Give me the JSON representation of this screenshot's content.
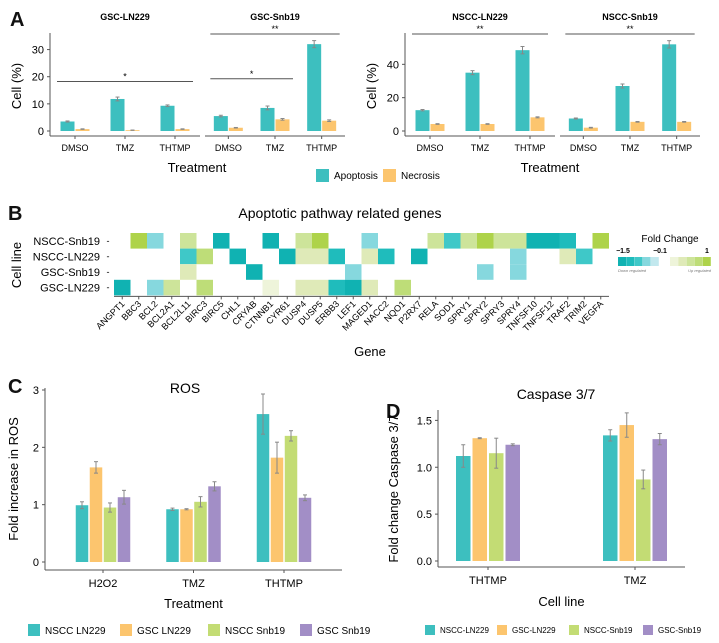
{
  "colors": {
    "apoptosis": "#3dbfbf",
    "necrosis": "#fcc56e",
    "nscc_ln229": "#3dbfbf",
    "gsc_ln229": "#fcc56e",
    "nscc_snb19": "#c3dc74",
    "gsc_snb19": "#a28ec6",
    "axis": "#555555",
    "errorbar": "#888888",
    "sig_line": "#555555"
  },
  "panel_labels": [
    "A",
    "B",
    "C",
    "D"
  ],
  "chart_data": [
    {
      "id": "A",
      "type": "bar",
      "ylabel": "Cell (%)",
      "xlabel": "Treatment",
      "legend": [
        "Apoptosis",
        "Necrosis"
      ],
      "legend_position": "bottom-center",
      "categories": [
        "DMSO",
        "TMZ",
        "THTMP"
      ],
      "facets": [
        {
          "title": "GSC-LN229",
          "ylim": [
            0,
            35
          ],
          "yticks": [
            0,
            10,
            20,
            30
          ],
          "show_yaxis": true,
          "series": [
            {
              "name": "Apoptosis",
              "values": [
                3.5,
                11.8,
                9.3
              ],
              "err": [
                0.2,
                0.7,
                0.3
              ]
            },
            {
              "name": "Necrosis",
              "values": [
                0.7,
                0.3,
                0.7
              ],
              "err": [
                0.1,
                0.05,
                0.1
              ]
            }
          ],
          "significance": [
            {
              "from": "DMSO",
              "to": "THTMP",
              "label": "*",
              "y": 17.5
            }
          ]
        },
        {
          "title": "GSC-Snb19",
          "ylim": [
            0,
            35
          ],
          "yticks": [
            0,
            10,
            20,
            30
          ],
          "show_yaxis": false,
          "series": [
            {
              "name": "Apoptosis",
              "values": [
                5.5,
                8.5,
                32
              ],
              "err": [
                0.3,
                0.7,
                1.3
              ]
            },
            {
              "name": "Necrosis",
              "values": [
                1.2,
                4.3,
                3.8
              ],
              "err": [
                0.1,
                0.3,
                0.3
              ]
            }
          ],
          "significance": [
            {
              "from": "DMSO",
              "to": "TMZ",
              "label": "*",
              "y": 18.5
            },
            {
              "from": "DMSO",
              "to": "THTMP",
              "label": "**",
              "y": 35
            }
          ]
        },
        {
          "title": "NSCC-LN229",
          "ylim": [
            0,
            57
          ],
          "yticks": [
            0,
            20,
            40
          ],
          "show_yaxis": true,
          "series": [
            {
              "name": "Apoptosis",
              "values": [
                12.5,
                35,
                48.5
              ],
              "err": [
                0.4,
                1.2,
                2.2
              ]
            },
            {
              "name": "Necrosis",
              "values": [
                4.2,
                4.2,
                8.2
              ],
              "err": [
                0.2,
                0.2,
                0.3
              ]
            }
          ],
          "significance": [
            {
              "from": "DMSO",
              "to": "THTMP",
              "label": "**",
              "y": 57
            }
          ]
        },
        {
          "title": "NSCC-Snb19",
          "ylim": [
            0,
            57
          ],
          "yticks": [
            0,
            20,
            40
          ],
          "show_yaxis": false,
          "series": [
            {
              "name": "Apoptosis",
              "values": [
                7.5,
                27,
                52
              ],
              "err": [
                0.3,
                1.2,
                2.2
              ]
            },
            {
              "name": "Necrosis",
              "values": [
                2,
                5.5,
                5.5
              ],
              "err": [
                0.2,
                0.2,
                0.2
              ]
            }
          ],
          "significance": [
            {
              "from": "DMSO",
              "to": "THTMP",
              "label": "**",
              "y": 57
            }
          ]
        }
      ]
    },
    {
      "id": "B",
      "type": "heatmap",
      "title": "Apoptotic pathway related genes",
      "xlabel": "Gene",
      "ylabel": "Cell line",
      "rows": [
        "NSCC-Snb19",
        "NSCC-LN229",
        "GSC-Snb19",
        "GSC-LN229"
      ],
      "columns": [
        "ANGPT1",
        "BBC3",
        "BCL2",
        "BCL2A1",
        "BCL2L11",
        "BIRC3",
        "BIRC5",
        "CHL1",
        "CRYAB",
        "CTNNB1",
        "CYR61",
        "DUSP4",
        "DUSP5",
        "ERBB3",
        "LEF1",
        "MAGED1",
        "NACC2",
        "NQO1",
        "P2RX7",
        "RELA",
        "SOD1",
        "SPRY1",
        "SPRY2",
        "SPRY3",
        "SPRY4",
        "TNFSF10",
        "TNFSF12",
        "TRAF2",
        "TRIM2",
        "VEGFA"
      ],
      "values": [
        [
          null,
          0.9,
          -0.5,
          null,
          0.55,
          null,
          -1.5,
          null,
          null,
          -1.35,
          null,
          0.55,
          0.9,
          null,
          null,
          -0.5,
          null,
          null,
          null,
          0.45,
          -0.8,
          0.45,
          0.9,
          0.45,
          0.55,
          -1.5,
          -1.5,
          -1.3,
          null,
          0.9
        ],
        [
          null,
          null,
          null,
          null,
          -0.65,
          0.75,
          null,
          -1.35,
          null,
          null,
          -1.5,
          0.3,
          0.3,
          -1.1,
          null,
          0.15,
          -1.1,
          null,
          -1.5,
          null,
          null,
          null,
          null,
          null,
          -0.2,
          null,
          null,
          0.2,
          -0.8,
          null
        ],
        [
          null,
          null,
          null,
          null,
          0.25,
          null,
          null,
          null,
          -1.5,
          null,
          null,
          null,
          null,
          null,
          -0.4,
          null,
          null,
          null,
          null,
          null,
          null,
          null,
          -0.4,
          null,
          -0.25,
          null,
          null,
          null,
          null,
          null
        ],
        [
          -1.4,
          null,
          -0.35,
          0.6,
          null,
          0.8,
          null,
          null,
          null,
          0.05,
          null,
          0.3,
          0.3,
          -0.95,
          -1.4,
          0.15,
          null,
          0.75,
          null,
          null,
          null,
          null,
          null,
          null,
          null,
          null,
          null,
          null,
          null,
          null
        ]
      ],
      "legend": {
        "title": "Fold Change",
        "ticks": [
          -1.5,
          -0.1,
          1
        ],
        "tick_labels": [
          "−1.5",
          "−0.1",
          "1"
        ],
        "down_label": "Down regulated",
        "up_label": "Up regulated",
        "down_colors": [
          "#10b2b2",
          "#1fbcbc",
          "#3fc8c8",
          "#86d8de",
          "#c2e8ee"
        ],
        "up_colors": [
          "#eef4da",
          "#dfeab8",
          "#cde49a",
          "#bedd78",
          "#aed34a"
        ]
      }
    },
    {
      "id": "C",
      "type": "bar",
      "title": "ROS",
      "xlabel": "Treatment",
      "ylabel": "Fold increase in ROS",
      "ylim": [
        0,
        3
      ],
      "yticks": [
        0,
        1,
        2,
        3
      ],
      "categories": [
        "H2O2",
        "TMZ",
        "THTMP"
      ],
      "legend_position": "bottom",
      "series": [
        {
          "name": "NSCC LN229",
          "values": [
            0.99,
            0.92,
            2.58
          ],
          "err": [
            0.06,
            0.02,
            0.35
          ]
        },
        {
          "name": "GSC LN229",
          "values": [
            1.65,
            0.92,
            1.82
          ],
          "err": [
            0.1,
            0.01,
            0.27
          ]
        },
        {
          "name": "NSCC Snb19",
          "values": [
            0.95,
            1.05,
            2.2
          ],
          "err": [
            0.08,
            0.09,
            0.09
          ]
        },
        {
          "name": "GSC Snb19",
          "values": [
            1.13,
            1.32,
            1.12
          ],
          "err": [
            0.12,
            0.08,
            0.05
          ]
        }
      ]
    },
    {
      "id": "D",
      "type": "bar",
      "title": "Caspase 3/7",
      "xlabel": "Cell line",
      "ylabel": "Fold change Caspase 3/7",
      "ylim": [
        0,
        1.6
      ],
      "yticks": [
        0.0,
        0.5,
        1.0,
        1.5
      ],
      "ytick_labels": [
        "0.0",
        "0.5",
        "1.0",
        "1.5"
      ],
      "categories": [
        "THTMP",
        "TMZ"
      ],
      "legend_position": "bottom",
      "series": [
        {
          "name": "NSCC-LN229",
          "values": [
            1.12,
            1.34
          ],
          "err": [
            0.12,
            0.06
          ]
        },
        {
          "name": "GSC-LN229",
          "values": [
            1.31,
            1.45
          ],
          "err": [
            0.005,
            0.13
          ]
        },
        {
          "name": "NSCC-Snb19",
          "values": [
            1.15,
            0.87
          ],
          "err": [
            0.16,
            0.1
          ]
        },
        {
          "name": "GSC-Snb19",
          "values": [
            1.24,
            1.3
          ],
          "err": [
            0.01,
            0.06
          ]
        }
      ]
    }
  ]
}
